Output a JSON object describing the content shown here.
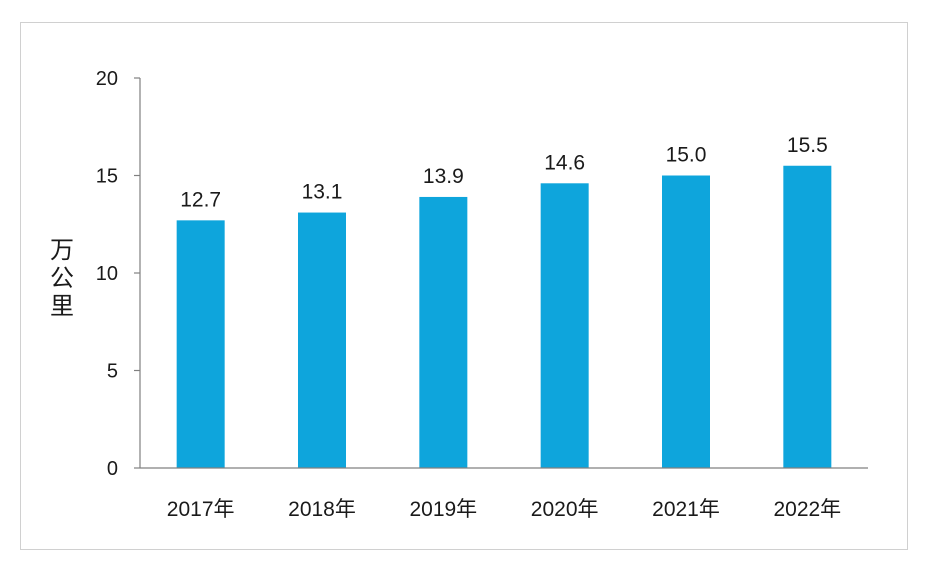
{
  "chart_data": {
    "type": "bar",
    "categories": [
      "2017年",
      "2018年",
      "2019年",
      "2020年",
      "2021年",
      "2022年"
    ],
    "values": [
      12.7,
      13.1,
      13.9,
      14.6,
      15.0,
      15.5
    ],
    "data_labels": [
      "12.7",
      "13.1",
      "13.9",
      "14.6",
      "15.0",
      "15.5"
    ],
    "title": "",
    "xlabel": "",
    "ylabel": "万公里",
    "ylim": [
      0,
      20
    ],
    "yticks": [
      0,
      5,
      10,
      15,
      20
    ],
    "grid": false,
    "bar_color": "#0ea5dc",
    "axis_color": "#808080"
  }
}
